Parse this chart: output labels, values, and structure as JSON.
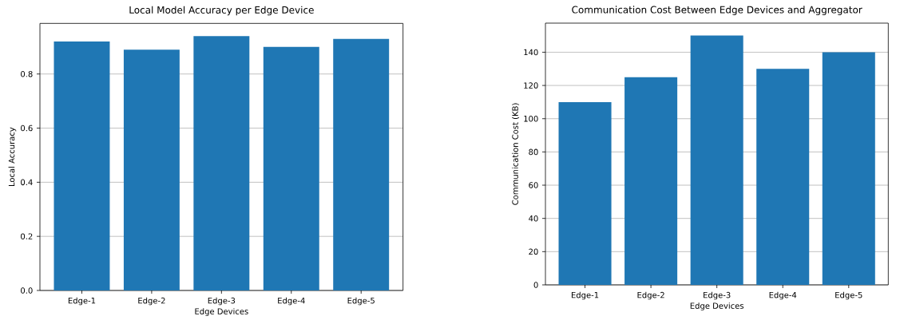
{
  "chart_data": [
    {
      "type": "bar",
      "title": "Local Model Accuracy per Edge Device",
      "xlabel": "Edge Devices",
      "ylabel": "Local Accuracy",
      "categories": [
        "Edge-1",
        "Edge-2",
        "Edge-3",
        "Edge-4",
        "Edge-5"
      ],
      "values": [
        0.92,
        0.89,
        0.94,
        0.9,
        0.93
      ],
      "color": "#1f77b4",
      "ylim": [
        0,
        0.987
      ],
      "yticks": [
        {
          "value": 0,
          "label": "0.0"
        },
        {
          "value": 0.2,
          "label": "0.2"
        },
        {
          "value": 0.4,
          "label": "0.4"
        },
        {
          "value": 0.6,
          "label": "0.6"
        },
        {
          "value": 0.8,
          "label": "0.8"
        }
      ],
      "grid": "y"
    },
    {
      "type": "bar",
      "title": "Communication Cost Between Edge Devices and Aggregator",
      "xlabel": "Edge Devices",
      "ylabel": "Communication Cost (KB)",
      "categories": [
        "Edge-1",
        "Edge-2",
        "Edge-3",
        "Edge-4",
        "Edge-5"
      ],
      "values": [
        110,
        125,
        150,
        130,
        140
      ],
      "color": "#1f77b4",
      "ylim": [
        0,
        157.5
      ],
      "yticks": [
        0,
        20,
        40,
        60,
        80,
        100,
        120,
        140
      ],
      "grid": "y"
    }
  ]
}
